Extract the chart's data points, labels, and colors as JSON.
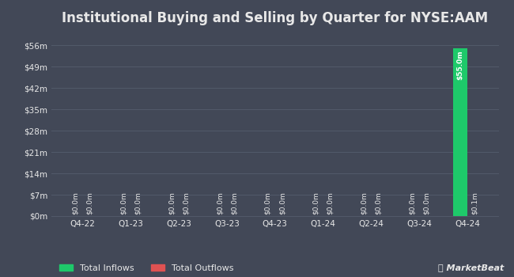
{
  "title": "Institutional Buying and Selling by Quarter for NYSE:AAM",
  "categories": [
    "Q4-22",
    "Q1-23",
    "Q2-23",
    "Q3-23",
    "Q4-23",
    "Q1-24",
    "Q2-24",
    "Q3-24",
    "Q4-24"
  ],
  "inflows": [
    0.001,
    0.001,
    0.001,
    0.001,
    0.001,
    0.001,
    0.001,
    0.001,
    55.0
  ],
  "outflows": [
    0.001,
    0.001,
    0.001,
    0.001,
    0.001,
    0.001,
    0.001,
    0.001,
    0.1
  ],
  "inflow_labels": [
    "$0.0m",
    "$0.0m",
    "$0.0m",
    "$0.0m",
    "$0.0m",
    "$0.0m",
    "$0.0m",
    "$0.0m",
    "$55.0m"
  ],
  "outflow_labels": [
    "$0.0m",
    "$0.0m",
    "$0.0m",
    "$0.0m",
    "$0.0m",
    "$0.0m",
    "$0.0m",
    "$0.0m",
    "$0.1m"
  ],
  "ylim": [
    0,
    60
  ],
  "yticks": [
    0,
    7,
    14,
    21,
    28,
    35,
    42,
    49,
    56
  ],
  "ytick_labels": [
    "$0m",
    "$7m",
    "$14m",
    "$21m",
    "$28m",
    "$35m",
    "$42m",
    "$49m",
    "$56m"
  ],
  "bg_color": "#424857",
  "plot_bg_color": "#424857",
  "grid_color": "#525a6a",
  "text_color": "#e8e8e8",
  "inflow_color": "#1ec96a",
  "outflow_color": "#e05252",
  "bar_width": 0.3,
  "title_fontsize": 12,
  "label_fontsize": 6.5,
  "tick_fontsize": 7.5,
  "legend_fontsize": 8
}
